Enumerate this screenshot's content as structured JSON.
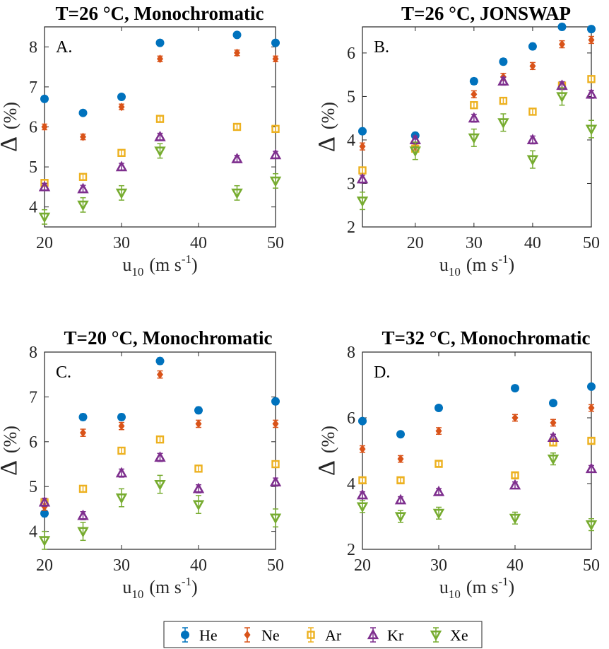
{
  "chart_data": [
    {
      "type": "scatter",
      "panel_label": "A.",
      "title": "T=26 °C, Monochromatic",
      "xlabel": "u",
      "xlabel_sub": "10",
      "xlabel_units": "(m s",
      "xlabel_sup": "-1",
      "xlabel_close": ")",
      "ylabel": "Δ",
      "ylabel_units": "(%)",
      "xlim": [
        20,
        50
      ],
      "ylim": [
        3.5,
        8.5
      ],
      "xticks": [
        20,
        30,
        40,
        50
      ],
      "yticks": [
        4,
        5,
        6,
        7,
        8
      ],
      "series": [
        {
          "name": "He",
          "x": [
            20,
            25,
            30,
            35,
            45,
            50
          ],
          "y": [
            6.7,
            6.35,
            6.75,
            8.1,
            8.3,
            8.1
          ],
          "err": [
            0.07,
            0.07,
            0.07,
            0.07,
            0.07,
            0.07
          ]
        },
        {
          "name": "Ne",
          "x": [
            20,
            25,
            30,
            35,
            45,
            50
          ],
          "y": [
            6.0,
            5.75,
            6.5,
            7.7,
            7.85,
            7.7
          ],
          "err": [
            0.07,
            0.07,
            0.07,
            0.07,
            0.07,
            0.07
          ]
        },
        {
          "name": "Ar",
          "x": [
            20,
            25,
            30,
            35,
            45,
            50
          ],
          "y": [
            4.6,
            4.75,
            5.35,
            6.2,
            6.0,
            5.95
          ],
          "err": [
            0.07,
            0.07,
            0.07,
            0.07,
            0.07,
            0.07
          ]
        },
        {
          "name": "Kr",
          "x": [
            20,
            25,
            30,
            35,
            45,
            50
          ],
          "y": [
            4.5,
            4.45,
            5.0,
            5.75,
            5.2,
            5.3
          ],
          "err": [
            0.09,
            0.09,
            0.09,
            0.09,
            0.09,
            0.09
          ]
        },
        {
          "name": "Xe",
          "x": [
            20,
            25,
            30,
            35,
            45,
            50
          ],
          "y": [
            3.75,
            4.05,
            4.35,
            5.4,
            4.35,
            4.65
          ],
          "err": [
            0.18,
            0.18,
            0.18,
            0.18,
            0.18,
            0.18
          ]
        }
      ]
    },
    {
      "type": "scatter",
      "panel_label": "B.",
      "title": "T=26 °C, JONSWAP",
      "xlabel": "u",
      "xlabel_sub": "10",
      "xlabel_units": "(m s",
      "xlabel_sup": "-1",
      "xlabel_close": ")",
      "ylabel": "Δ",
      "ylabel_units": "(%)",
      "xlim": [
        11,
        50
      ],
      "ylim": [
        2,
        6.6
      ],
      "xticks": [
        20,
        30,
        40,
        50
      ],
      "yticks": [
        2,
        3,
        4,
        5,
        6
      ],
      "series": [
        {
          "name": "He",
          "x": [
            11,
            20,
            30,
            35,
            40,
            45,
            50
          ],
          "y": [
            4.2,
            4.1,
            5.35,
            5.8,
            6.15,
            6.6,
            6.55
          ],
          "err": [
            0.07,
            0.07,
            0.07,
            0.07,
            0.07,
            0.07,
            0.07
          ]
        },
        {
          "name": "Ne",
          "x": [
            11,
            20,
            30,
            35,
            40,
            45,
            50
          ],
          "y": [
            3.85,
            3.85,
            5.05,
            5.45,
            5.7,
            6.2,
            6.3
          ],
          "err": [
            0.08,
            0.08,
            0.08,
            0.08,
            0.08,
            0.08,
            0.08
          ]
        },
        {
          "name": "Ar",
          "x": [
            11,
            20,
            30,
            35,
            40,
            45,
            50
          ],
          "y": [
            3.3,
            3.8,
            4.8,
            4.9,
            4.65,
            5.25,
            5.4
          ],
          "err": [
            0.07,
            0.07,
            0.07,
            0.07,
            0.07,
            0.07,
            0.07
          ]
        },
        {
          "name": "Kr",
          "x": [
            11,
            20,
            30,
            35,
            40,
            45,
            50
          ],
          "y": [
            3.1,
            4.0,
            4.5,
            5.35,
            4.0,
            5.25,
            5.05
          ],
          "err": [
            0.09,
            0.09,
            0.09,
            0.09,
            0.09,
            0.09,
            0.09
          ]
        },
        {
          "name": "Xe",
          "x": [
            11,
            20,
            30,
            35,
            40,
            45,
            50
          ],
          "y": [
            2.6,
            3.75,
            4.05,
            4.4,
            3.55,
            5.0,
            4.25
          ],
          "err": [
            0.2,
            0.2,
            0.2,
            0.2,
            0.2,
            0.2,
            0.2
          ]
        }
      ]
    },
    {
      "type": "scatter",
      "panel_label": "C.",
      "title": "T=20 °C, Monochromatic",
      "xlabel": "u",
      "xlabel_sub": "10",
      "xlabel_units": "(m s",
      "xlabel_sup": "-1",
      "xlabel_close": ")",
      "ylabel": "Δ",
      "ylabel_units": "(%)",
      "xlim": [
        20,
        50
      ],
      "ylim": [
        3.6,
        8.0
      ],
      "xticks": [
        20,
        30,
        40,
        50
      ],
      "yticks": [
        4,
        5,
        6,
        7,
        8
      ],
      "series": [
        {
          "name": "He",
          "x": [
            20,
            25,
            30,
            35,
            40,
            50
          ],
          "y": [
            4.4,
            6.55,
            6.55,
            7.8,
            6.7,
            6.9
          ],
          "err": [
            0.07,
            0.07,
            0.07,
            0.07,
            0.07,
            0.07
          ]
        },
        {
          "name": "Ne",
          "x": [
            20,
            25,
            30,
            35,
            40,
            50
          ],
          "y": [
            4.55,
            6.2,
            6.35,
            7.5,
            6.4,
            6.4
          ],
          "err": [
            0.08,
            0.08,
            0.08,
            0.08,
            0.08,
            0.08
          ]
        },
        {
          "name": "Ar",
          "x": [
            20,
            25,
            30,
            35,
            40,
            50
          ],
          "y": [
            4.65,
            4.95,
            5.8,
            6.05,
            5.4,
            5.5
          ],
          "err": [
            0.07,
            0.07,
            0.07,
            0.07,
            0.07,
            0.07
          ]
        },
        {
          "name": "Kr",
          "x": [
            20,
            25,
            30,
            35,
            40,
            50
          ],
          "y": [
            4.65,
            4.35,
            5.3,
            5.65,
            4.95,
            5.1
          ],
          "err": [
            0.09,
            0.09,
            0.09,
            0.09,
            0.09,
            0.09
          ]
        },
        {
          "name": "Xe",
          "x": [
            20,
            25,
            30,
            35,
            40,
            50
          ],
          "y": [
            3.8,
            4.0,
            4.75,
            5.05,
            4.6,
            4.3
          ],
          "err": [
            0.2,
            0.2,
            0.2,
            0.2,
            0.2,
            0.2
          ]
        }
      ]
    },
    {
      "type": "scatter",
      "panel_label": "D.",
      "title": "T=32 °C, Monochromatic",
      "xlabel": "u",
      "xlabel_sub": "10",
      "xlabel_units": "(m s",
      "xlabel_sup": "-1",
      "xlabel_close": ")",
      "ylabel": "Δ",
      "ylabel_units": "(%)",
      "xlim": [
        20,
        50
      ],
      "ylim": [
        2,
        8
      ],
      "xticks": [
        20,
        30,
        40,
        50
      ],
      "yticks": [
        2,
        4,
        6,
        8
      ],
      "series": [
        {
          "name": "He",
          "x": [
            20,
            25,
            30,
            40,
            45,
            50
          ],
          "y": [
            5.9,
            5.5,
            6.3,
            6.9,
            6.45,
            6.95
          ],
          "err": [
            0.07,
            0.07,
            0.07,
            0.07,
            0.07,
            0.07
          ]
        },
        {
          "name": "Ne",
          "x": [
            20,
            25,
            30,
            40,
            45,
            50
          ],
          "y": [
            5.05,
            4.75,
            5.6,
            6.0,
            5.85,
            6.3
          ],
          "err": [
            0.1,
            0.1,
            0.1,
            0.1,
            0.1,
            0.1
          ]
        },
        {
          "name": "Ar",
          "x": [
            20,
            25,
            30,
            40,
            45,
            50
          ],
          "y": [
            4.1,
            4.1,
            4.6,
            4.25,
            5.25,
            5.3
          ],
          "err": [
            0.08,
            0.08,
            0.08,
            0.08,
            0.08,
            0.08
          ]
        },
        {
          "name": "Kr",
          "x": [
            20,
            25,
            30,
            40,
            45,
            50
          ],
          "y": [
            3.65,
            3.5,
            3.75,
            3.95,
            5.4,
            4.45
          ],
          "err": [
            0.1,
            0.1,
            0.1,
            0.1,
            0.1,
            0.1
          ]
        },
        {
          "name": "Xe",
          "x": [
            20,
            25,
            30,
            40,
            45,
            50
          ],
          "y": [
            3.3,
            3.0,
            3.1,
            2.95,
            4.75,
            2.75
          ],
          "err": [
            0.18,
            0.18,
            0.18,
            0.18,
            0.18,
            0.18
          ]
        }
      ]
    }
  ],
  "legend": {
    "placement": "bottom-center",
    "entries": [
      {
        "name": "He",
        "marker": "circle",
        "color": "#0072BD"
      },
      {
        "name": "Ne",
        "marker": "diamond",
        "color": "#D95319"
      },
      {
        "name": "Ar",
        "marker": "square",
        "color": "#EDB120"
      },
      {
        "name": "Kr",
        "marker": "triangle-up",
        "color": "#7E2F8E"
      },
      {
        "name": "Xe",
        "marker": "triangle-down",
        "color": "#77AC30"
      }
    ]
  }
}
